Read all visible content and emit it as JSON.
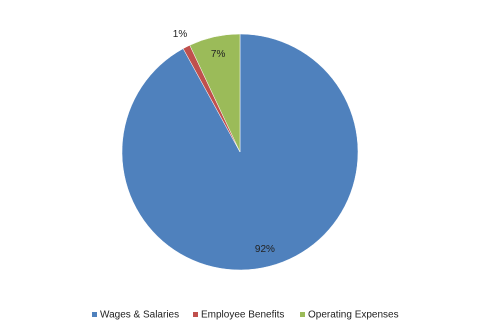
{
  "chart_data": {
    "type": "pie",
    "categories": [
      "Wages & Salaries",
      "Employee Benefits",
      "Operating Expenses"
    ],
    "values": [
      92,
      1,
      7
    ],
    "value_labels": [
      "92%",
      "1%",
      "7%"
    ],
    "colors": [
      "#4f81bd",
      "#c0504d",
      "#9bbb59"
    ],
    "legend": "bottom"
  }
}
